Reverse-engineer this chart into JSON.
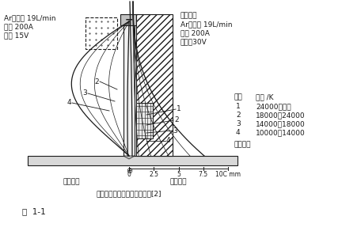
{
  "fig_label": "图  1-1",
  "left_label_lines": [
    "Ar气流量 19L/min",
    "电流 200A",
    "电压 15V"
  ],
  "right_label_lines": [
    "喷孔直径",
    "Ar气流量 19L/min",
    "电流 200A",
    "电压：30V"
  ],
  "legend_title_col1": "区域",
  "legend_title_col2": "温度 /K",
  "legend_rows": [
    [
      "1",
      "24000～以上"
    ],
    [
      "2",
      "18000～24000"
    ],
    [
      "3",
      "14000～18000"
    ],
    [
      "4",
      "10000～14000"
    ]
  ],
  "legend_extra": "温度分布",
  "axis_ticks": [
    "0",
    "2.5",
    "5",
    "7.5",
    "10C mm"
  ],
  "bottom_label_left": "自由弧弧",
  "bottom_label_right": "等离子弧",
  "title_str": "自由弧弧与等离子弧温度分布",
  "title_ref": "[2]",
  "bg_color": "#ffffff",
  "line_color": "#1a1a1a"
}
